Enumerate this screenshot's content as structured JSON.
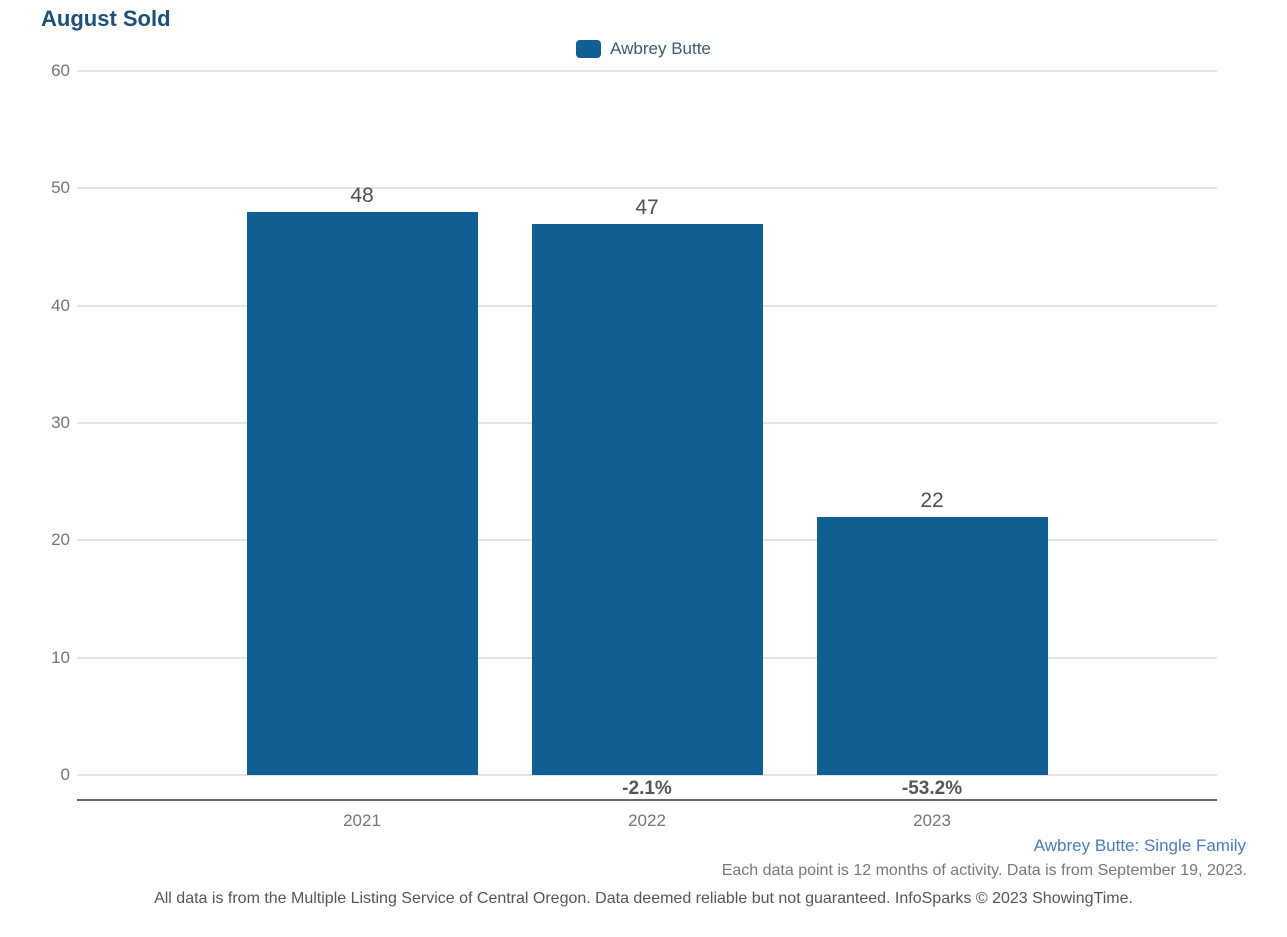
{
  "page": {
    "title": "August Sold"
  },
  "legend": {
    "items": [
      {
        "label": "Awbrey Butte",
        "color": "#115F92"
      }
    ]
  },
  "chart_data": {
    "type": "bar",
    "title": "August Sold",
    "categories": [
      "2021",
      "2022",
      "2023"
    ],
    "series": [
      {
        "name": "Awbrey Butte",
        "values": [
          48,
          47,
          22
        ],
        "color": "#115F92"
      }
    ],
    "value_labels": [
      "48",
      "47",
      "22"
    ],
    "pct_change_labels": [
      "",
      "-2.1%",
      "-53.2%"
    ],
    "xlabel": "",
    "ylabel": "",
    "ylim": [
      0,
      60
    ],
    "yticks": [
      0,
      10,
      20,
      30,
      40,
      50,
      60
    ],
    "grid": true,
    "legend_position": "top-center"
  },
  "footer": {
    "series_note": "Awbrey Butte: Single Family",
    "data_note": "Each data point is 12 months of activity. Data is from September 19, 2023.",
    "disclaimer": "All data is from the Multiple Listing Service of Central Oregon. Data deemed reliable but not guaranteed. InfoSparks © 2023 ShowingTime."
  },
  "colors": {
    "bar": "#115F92",
    "title": "#1F4E79",
    "legend_text": "#3D5A75",
    "grid": "#E4E4E4",
    "axis": "#666666",
    "tick_text": "#757575",
    "value_text": "#4F4F4F",
    "pct_text": "#555555",
    "footer_blue": "#4A7DB5",
    "footer_gray": "#777777",
    "footer_dark": "#555555"
  }
}
